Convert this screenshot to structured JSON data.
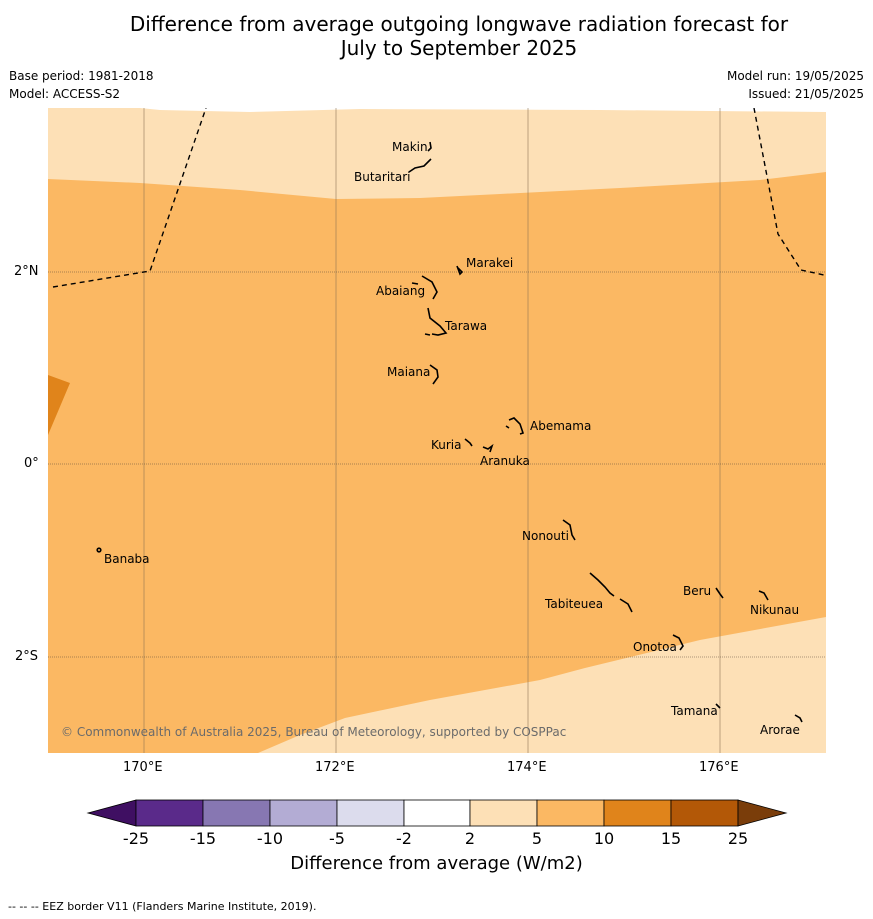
{
  "title_line1": "Difference from average outgoing longwave radiation forecast for",
  "title_line2": "July to September 2025",
  "base_period": "Base period: 1981-2018",
  "model": "Model: ACCESS-S2",
  "model_run": "Model run: 19/05/2025",
  "issued": "Issued: 21/05/2025",
  "lat_labels": [
    "2°N",
    "0°",
    "2°S"
  ],
  "lon_labels": [
    "170°E",
    "172°E",
    "174°E",
    "176°E"
  ],
  "places": [
    "Makin",
    "Butaritari",
    "Marakei",
    "Abaiang",
    "Tarawa",
    "Maiana",
    "Abemama",
    "Kuria",
    "Aranuka",
    "Nonouti",
    "Banaba",
    "Tabiteuea",
    "Beru",
    "Nikunau",
    "Onotoa",
    "Tamana",
    "Arorae"
  ],
  "copyright": "© Commonwealth of Australia 2025, Bureau of Meteorology, supported by COSPPac",
  "colorbar": {
    "title": "Difference from average (W/m2)",
    "ticks": [
      "-25",
      "-15",
      "-10",
      "-5",
      "-2",
      "2",
      "5",
      "10",
      "15",
      "25"
    ],
    "colors": [
      "#3f0f62",
      "#5a2a8a",
      "#8777b2",
      "#b3acd4",
      "#dcdced",
      "#ffffff",
      "#fde0b6",
      "#fbb863",
      "#e0841b",
      "#b35807",
      "#7a3d0a"
    ]
  },
  "footer": "--  --  -- EEZ border V11 (Flanders Marine Institute, 2019)."
}
